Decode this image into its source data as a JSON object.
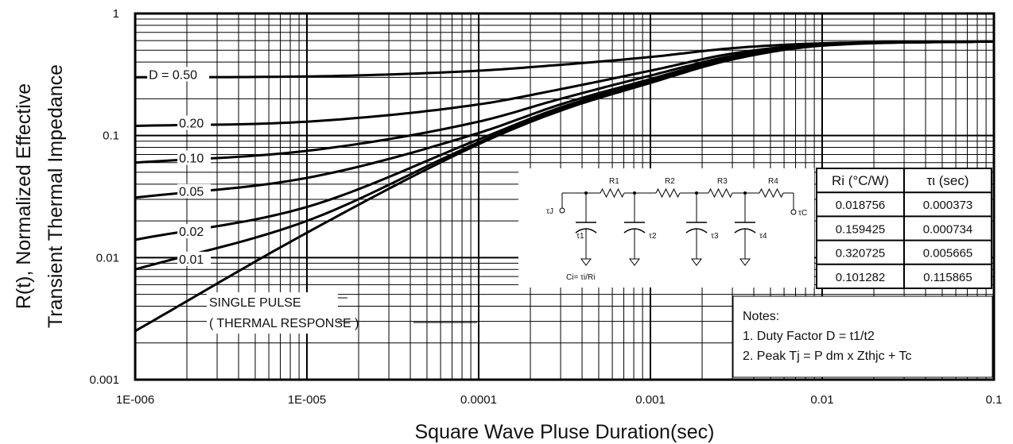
{
  "chart_data": {
    "type": "line",
    "xlabel": "Square Wave Pluse Duration(sec)",
    "ylabel_line1": "R(t), Normalized Effective",
    "ylabel_line2": "Transient Thermal Impedance",
    "xscale": "log",
    "yscale": "log",
    "xlim": [
      1e-06,
      0.1
    ],
    "ylim": [
      0.001,
      1
    ],
    "grid": true,
    "x_ticks": [
      {
        "value": 1e-06,
        "label": "1E-006"
      },
      {
        "value": 1e-05,
        "label": "1E-005"
      },
      {
        "value": 0.0001,
        "label": "0.0001"
      },
      {
        "value": 0.001,
        "label": "0.001"
      },
      {
        "value": 0.01,
        "label": "0.01"
      },
      {
        "value": 0.1,
        "label": "0.1"
      }
    ],
    "y_ticks": [
      {
        "value": 1,
        "label": "1"
      },
      {
        "value": 0.1,
        "label": "0.1"
      },
      {
        "value": 0.01,
        "label": "0.01"
      },
      {
        "value": 0.001,
        "label": "0.001"
      }
    ],
    "series": [
      {
        "label": "D = 0.50",
        "label_at": [
          1.2e-06,
          0.3
        ],
        "points": [
          [
            1e-06,
            0.3
          ],
          [
            1e-05,
            0.305
          ],
          [
            0.0001,
            0.34
          ],
          [
            0.0003,
            0.38
          ],
          [
            0.001,
            0.44
          ],
          [
            0.003,
            0.52
          ],
          [
            0.01,
            0.57
          ],
          [
            0.1,
            0.59
          ]
        ]
      },
      {
        "label": "0.20",
        "label_at": [
          1.8e-06,
          0.12
        ],
        "points": [
          [
            1e-06,
            0.12
          ],
          [
            1e-05,
            0.13
          ],
          [
            0.0001,
            0.18
          ],
          [
            0.0003,
            0.24
          ],
          [
            0.001,
            0.34
          ],
          [
            0.003,
            0.47
          ],
          [
            0.01,
            0.56
          ],
          [
            0.1,
            0.59
          ]
        ]
      },
      {
        "label": "0.10",
        "label_at": [
          1.8e-06,
          0.062
        ],
        "points": [
          [
            1e-06,
            0.06
          ],
          [
            1e-05,
            0.075
          ],
          [
            0.0001,
            0.13
          ],
          [
            0.0003,
            0.2
          ],
          [
            0.001,
            0.31
          ],
          [
            0.003,
            0.45
          ],
          [
            0.01,
            0.555
          ],
          [
            0.1,
            0.59
          ]
        ]
      },
      {
        "label": "0.05",
        "label_at": [
          1.8e-06,
          0.033
        ],
        "points": [
          [
            1e-06,
            0.031
          ],
          [
            1e-05,
            0.045
          ],
          [
            0.0001,
            0.105
          ],
          [
            0.0003,
            0.18
          ],
          [
            0.001,
            0.29
          ],
          [
            0.003,
            0.44
          ],
          [
            0.01,
            0.55
          ],
          [
            0.1,
            0.59
          ]
        ]
      },
      {
        "label": "0.02",
        "label_at": [
          1.8e-06,
          0.0155
        ],
        "points": [
          [
            1e-06,
            0.014
          ],
          [
            1e-05,
            0.026
          ],
          [
            0.0001,
            0.093
          ],
          [
            0.0003,
            0.17
          ],
          [
            0.001,
            0.28
          ],
          [
            0.003,
            0.43
          ],
          [
            0.01,
            0.55
          ],
          [
            0.1,
            0.59
          ]
        ]
      },
      {
        "label": "0.01",
        "label_at": [
          1.8e-06,
          0.0092
        ],
        "points": [
          [
            1e-06,
            0.008
          ],
          [
            1e-05,
            0.02
          ],
          [
            0.0001,
            0.088
          ],
          [
            0.0003,
            0.165
          ],
          [
            0.001,
            0.275
          ],
          [
            0.003,
            0.43
          ],
          [
            0.01,
            0.55
          ],
          [
            0.1,
            0.59
          ]
        ]
      },
      {
        "label": "",
        "label_at": null,
        "points": [
          [
            1e-06,
            0.0025
          ],
          [
            1e-05,
            0.016
          ],
          [
            0.0001,
            0.085
          ],
          [
            0.0003,
            0.16
          ],
          [
            0.001,
            0.27
          ],
          [
            0.003,
            0.42
          ],
          [
            0.01,
            0.545
          ],
          [
            0.1,
            0.59
          ]
        ]
      }
    ],
    "single_pulse_label_line1": "SINGLE PULSE",
    "single_pulse_label_line2": "( THERMAL RESPONSE )",
    "rc_table": {
      "headers": [
        "Ri (°C/W)",
        "τι (sec)"
      ],
      "rows": [
        [
          "0.018756",
          "0.000373"
        ],
        [
          "0.159425",
          "0.000734"
        ],
        [
          "0.320725",
          "0.005665"
        ],
        [
          "0.101282",
          "0.115865"
        ]
      ]
    },
    "circuit": {
      "resistors": [
        "R1",
        "R2",
        "R3",
        "R4"
      ],
      "capacitors": [
        "τ1",
        "τ2",
        "τ3",
        "τ4"
      ],
      "node_left": "τJ",
      "node_right": "τC",
      "formula": "Ci= τi/Ri"
    },
    "notes": {
      "title": "Notes:",
      "line1": "1. Duty Factor D = t1/t2",
      "line2": "2. Peak Tj = P dm x Zthjc + Tc"
    }
  }
}
